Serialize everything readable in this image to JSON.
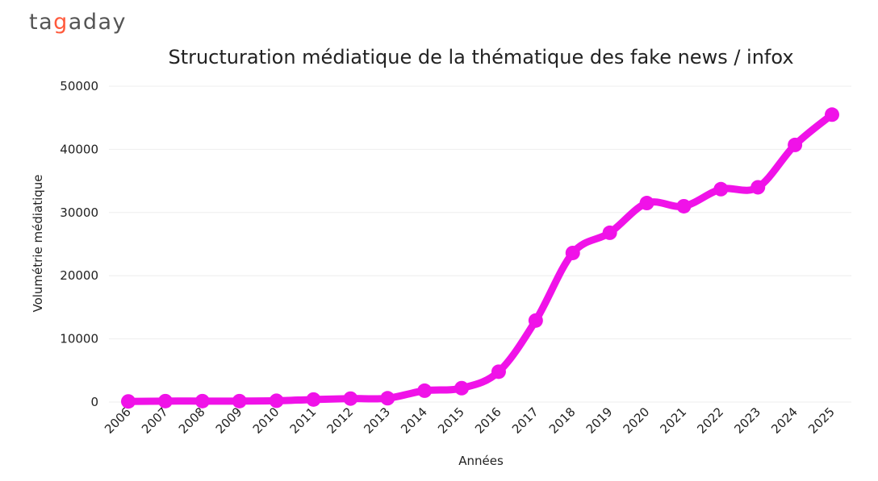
{
  "brand": {
    "logo_parts": [
      "ta",
      "g",
      "aday"
    ],
    "accent_color": "#ff5a3c"
  },
  "chart_data": {
    "type": "line",
    "title": "Structuration médiatique de la thématique des fake news / infox",
    "xlabel": "Années",
    "ylabel": "Volumétrie médiatique",
    "x": [
      "2006",
      "2007",
      "2008",
      "2009",
      "2010",
      "2011",
      "2012",
      "2013",
      "2014",
      "2015",
      "2016",
      "2017",
      "2018",
      "2019",
      "2020",
      "2021",
      "2022",
      "2023",
      "2024",
      "2025"
    ],
    "series": [
      {
        "values": [
          100,
          150,
          150,
          150,
          200,
          400,
          550,
          600,
          1800,
          2200,
          4800,
          12900,
          23600,
          26800,
          31500,
          31000,
          33700,
          34000,
          40700,
          45500
        ]
      }
    ],
    "ylim": [
      0,
      50000
    ],
    "yticks": [
      0,
      10000,
      20000,
      30000,
      40000,
      50000
    ],
    "grid": true,
    "line_color": "#f012e8",
    "grid_color": "#eeeeee"
  }
}
